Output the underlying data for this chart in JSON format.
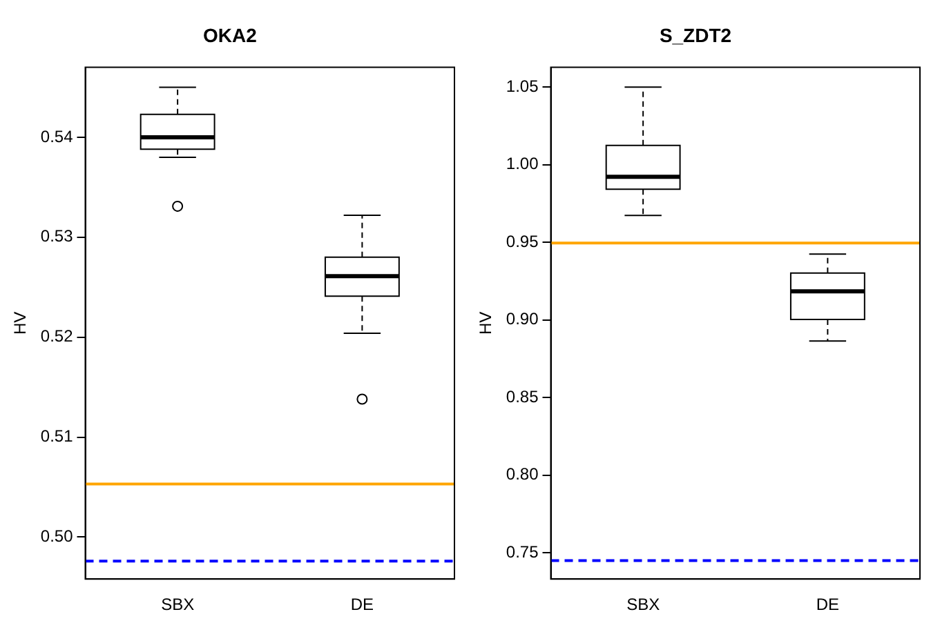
{
  "chart_data": [
    {
      "type": "box",
      "title": "OKA2",
      "ylabel": "HV",
      "categories": [
        "SBX",
        "DE"
      ],
      "boxes": [
        {
          "low": 0.538,
          "q1": 0.5388,
          "median": 0.54,
          "q3": 0.5423,
          "high": 0.545,
          "outliers": [
            0.5331
          ]
        },
        {
          "low": 0.5204,
          "q1": 0.5241,
          "median": 0.5261,
          "q3": 0.528,
          "high": 0.5322,
          "outliers": [
            0.5138
          ]
        }
      ],
      "ylim": [
        0.4958,
        0.547
      ],
      "yticks": [
        {
          "value": 0.5,
          "label": "0.50"
        },
        0.51,
        0.52,
        0.53,
        0.54
      ],
      "grid": false,
      "legend": false,
      "ref_lines": [
        {
          "axis": "y",
          "value": 0.5053,
          "color": "#ffa500",
          "line_style": "solid"
        },
        {
          "axis": "y",
          "value": 0.4976,
          "color": "#0000ff",
          "line_style": "dashed"
        }
      ]
    },
    {
      "type": "box",
      "title": "S_ZDT2",
      "ylabel": "HV",
      "categories": [
        "SBX",
        "DE"
      ],
      "boxes": [
        {
          "low": 0.9673,
          "q1": 0.9842,
          "median": 0.9922,
          "q3": 1.0124,
          "high": 1.05
        },
        {
          "low": 0.8864,
          "q1": 0.9003,
          "median": 0.9184,
          "q3": 0.9302,
          "high": 0.9424
        }
      ],
      "ylim": [
        0.7331,
        1.0627
      ],
      "yticks": [
        {
          "value": 0.75,
          "label": "0.75"
        },
        {
          "value": 0.8,
          "label": "0.80"
        },
        {
          "value": 0.85,
          "label": "0.85"
        },
        {
          "value": 0.9,
          "label": "0.90"
        },
        {
          "value": 0.95,
          "label": "0.95"
        },
        {
          "value": 1,
          "label": "1.00"
        },
        {
          "value": 1.05,
          "label": "1.05"
        }
      ],
      "grid": false,
      "legend": false,
      "ref_lines": [
        {
          "axis": "y",
          "value": 0.9495,
          "color": "#ffa500",
          "line_style": "solid"
        },
        {
          "axis": "y",
          "value": 0.745,
          "color": "#0000ff",
          "line_style": "dashed"
        }
      ]
    }
  ]
}
